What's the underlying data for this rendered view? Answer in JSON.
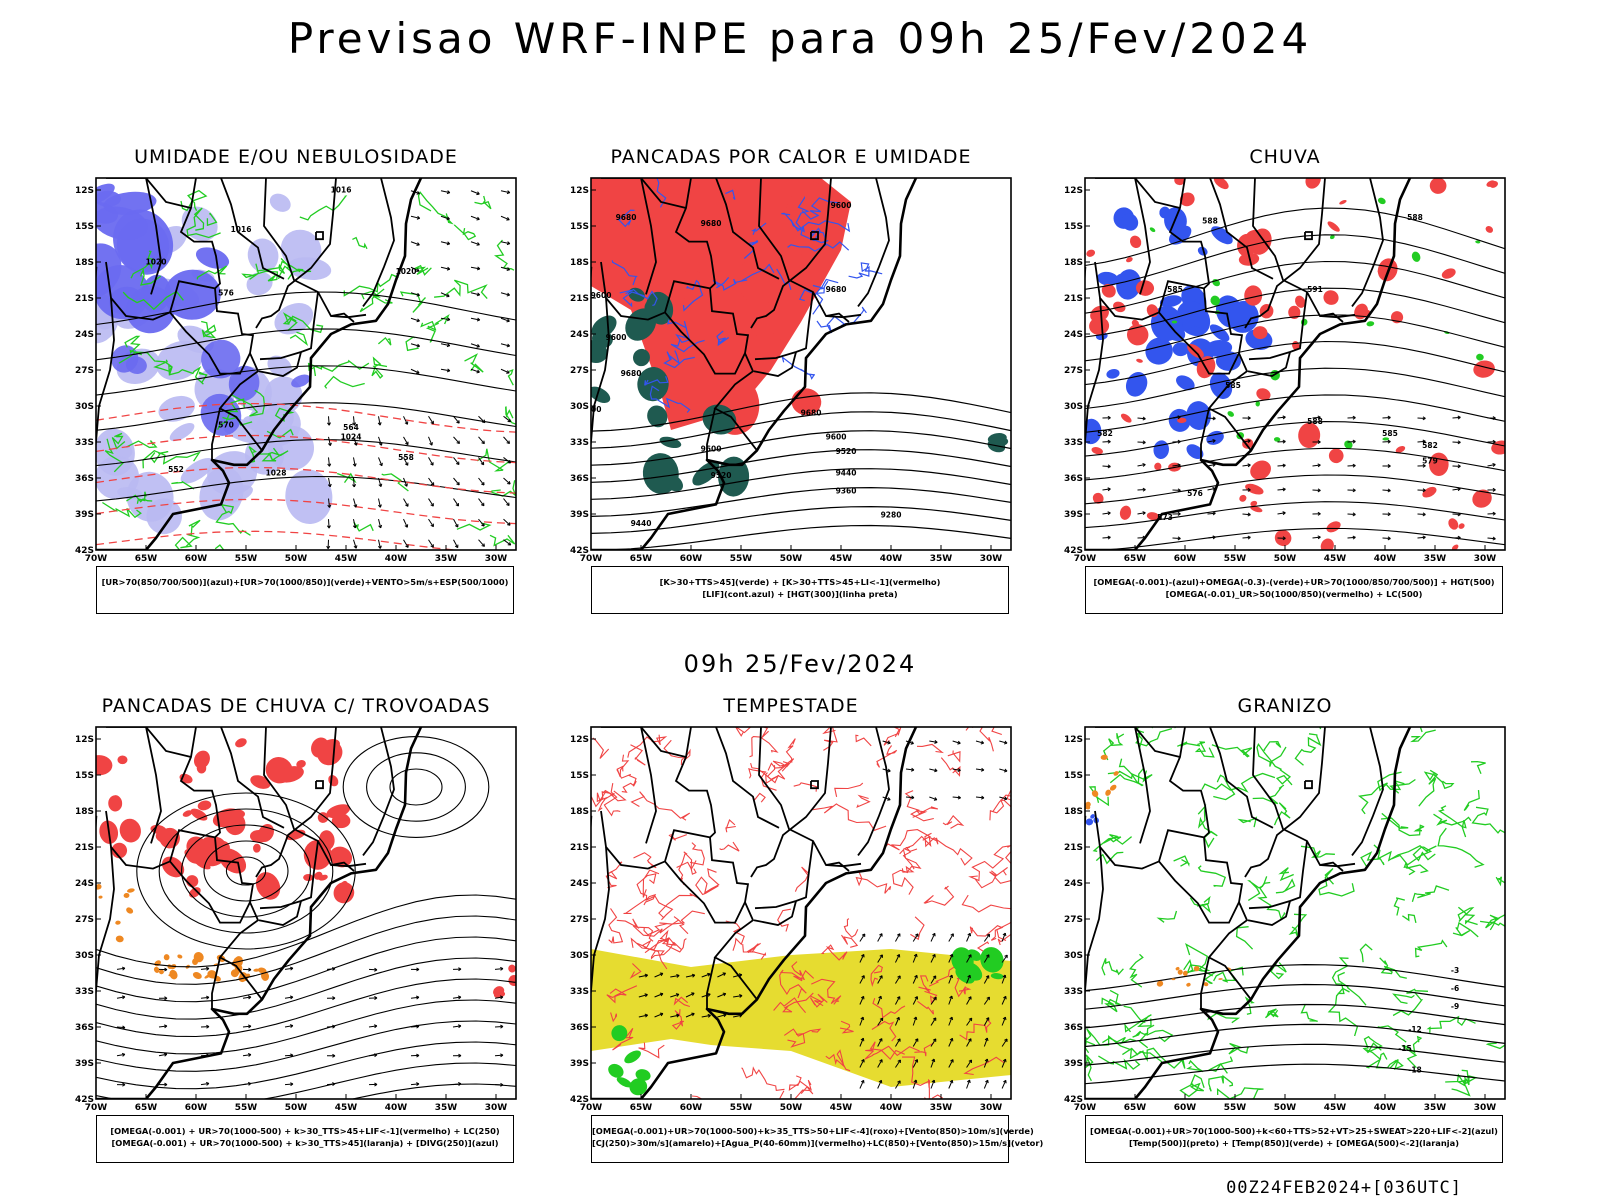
{
  "header": {
    "title": "Previsao WRF-INPE  para 09h 25/Fev/2024"
  },
  "middle": {
    "title": "09h 25/Fev/2024"
  },
  "footer": {
    "text": "00Z24FEB2024+[036UTC]"
  },
  "axes": {
    "lat_labels": [
      "12S",
      "15S",
      "18S",
      "21S",
      "24S",
      "27S",
      "30S",
      "33S",
      "36S",
      "39S",
      "42S"
    ],
    "lon_labels": [
      "70W",
      "65W",
      "60W",
      "55W",
      "50W",
      "45W",
      "40W",
      "35W",
      "30W"
    ]
  },
  "colors": {
    "humid_blue": "#6a6af0",
    "light_blue": "#b9b9f2",
    "green": "#22cc22",
    "red": "#f04444",
    "dark_teal": "#1f5a50",
    "blue": "#3355ee",
    "orange": "#ee8822",
    "yellow": "#e6dc30",
    "black": "#000000"
  },
  "panels": [
    {
      "title": "UMIDADE E/OU NEBULOSIDADE",
      "legend": [
        "[UR>70(850/700/500)](azul)+[UR>70(1000/850)](verde)+VENTO>5m/s+ESP(500/1000)"
      ],
      "contour_labels": [
        "1016",
        "1016",
        "1020",
        "1020",
        "1024",
        "1028",
        "576",
        "570",
        "564",
        "558",
        "552"
      ]
    },
    {
      "title": "PANCADAS POR CALOR E UMIDADE",
      "legend": [
        "[K>30+TTS>45](verde) + [K>30+TTS>45+LI<-1](vermelho)",
        "[LIF](cont.azul) + [HGT(300)](linha preta)"
      ],
      "contour_labels": [
        "9680",
        "9680",
        "9600",
        "9600",
        "9520",
        "9440",
        "9360",
        "9280",
        "9440"
      ]
    },
    {
      "title": "CHUVA",
      "legend": [
        "[OMEGA(-0.001)-(azul)+OMEGA(-0.3)-(verde)+UR>70(1000/850/700/500)] + HGT(500)",
        "[OMEGA(-0.01)_UR>50(1000/850)(vermelho) + LC(500)"
      ],
      "contour_labels": [
        "588",
        "585",
        "582",
        "579",
        "576",
        "573"
      ]
    },
    {
      "title": "PANCADAS DE CHUVA C/ TROVOADAS",
      "legend": [
        "[OMEGA(-0.001) + UR>70(1000-500) + k>30_TTS>45+LIF<-1](vermelho) + LC(250)",
        "[OMEGA(-0.001) + UR>70(1000-500) + k>30_TTS>45](laranja) + [DIVG(250)](azul)"
      ]
    },
    {
      "title": "TEMPESTADE",
      "legend": [
        "[OMEGA(-0.001)+UR>70(1000-500)+k>35_TTS>50+LIF<-4](roxo)+[Vento(850)>10m/s](verde)",
        "[CJ(250)>30m/s](amarelo)+[Agua_P(40-60mm)](vermelho)+LC(850)+[Vento(850)>15m/s](vetor)"
      ]
    },
    {
      "title": "GRANIZO",
      "legend": [
        "[OMEGA(-0.001)+UR>70(1000-500)+k<60+TTS>52+VT>25+SWEAT>220+LIF<-2](azul)",
        "[Temp(500)](preto) + [Temp(850)](verde) + [OMEGA(500)<-2](laranja)"
      ],
      "contour_labels": [
        "-3",
        "-6",
        "-9",
        "-12",
        "-15",
        "-18"
      ]
    }
  ]
}
